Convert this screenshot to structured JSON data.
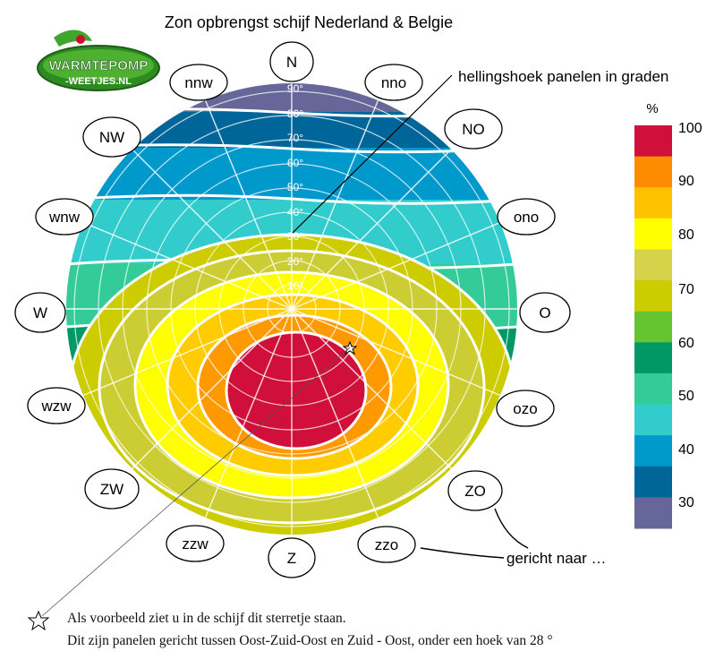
{
  "title": "Zon opbrengst schijf Nederland & Belgie",
  "logo": {
    "line1": "WARMTEPOMP",
    "line2": "-WEETJES.NL"
  },
  "annotations": {
    "tilt": "hellingshoek panelen in graden",
    "direction": "gericht naar …"
  },
  "directions": [
    {
      "key": "N",
      "label": "N"
    },
    {
      "key": "nno",
      "label": "nno"
    },
    {
      "key": "NO",
      "label": "NO"
    },
    {
      "key": "ono",
      "label": "ono"
    },
    {
      "key": "O",
      "label": "O"
    },
    {
      "key": "ozo",
      "label": "ozo"
    },
    {
      "key": "ZO",
      "label": "ZO"
    },
    {
      "key": "zzo",
      "label": "zzo"
    },
    {
      "key": "Z",
      "label": "Z"
    },
    {
      "key": "zzw",
      "label": "zzw"
    },
    {
      "key": "ZW",
      "label": "ZW"
    },
    {
      "key": "wzw",
      "label": "wzw"
    },
    {
      "key": "W",
      "label": "W"
    },
    {
      "key": "wnw",
      "label": "wnw"
    },
    {
      "key": "NW",
      "label": "NW"
    },
    {
      "key": "nnw",
      "label": "nnw"
    }
  ],
  "tilt_labels": [
    "90°",
    "80°",
    "70°",
    "60°",
    "50°",
    "40°",
    "30°",
    "20°",
    "10°"
  ],
  "legend": {
    "unit": "%",
    "ticks": [
      "100",
      "90",
      "80",
      "70",
      "60",
      "50",
      "40",
      "30"
    ],
    "colors": [
      "#d0103a",
      "#ff8c00",
      "#ffc200",
      "#ffff00",
      "#d6d24a",
      "#cccc00",
      "#66c431",
      "#009966",
      "#33cc99",
      "#33cccc",
      "#0099cc",
      "#006699",
      "#666699"
    ]
  },
  "disc_colors": {
    "center": "#d0103a",
    "rings": [
      "#ff9900",
      "#ffcc00",
      "#ffff00",
      "#cccc33",
      "#cccc00"
    ],
    "bands": [
      "#666699",
      "#006699",
      "#0099cc",
      "#33cccc",
      "#33cc99",
      "#009966",
      "#66cc33"
    ]
  },
  "footnote": {
    "line1": "Als voorbeeld ziet u in de schijf dit sterretje staan.",
    "line2": "Dit zijn panelen gericht tussen Oost-Zuid-Oost en Zuid - Oost, onder een hoek van 28 °"
  }
}
